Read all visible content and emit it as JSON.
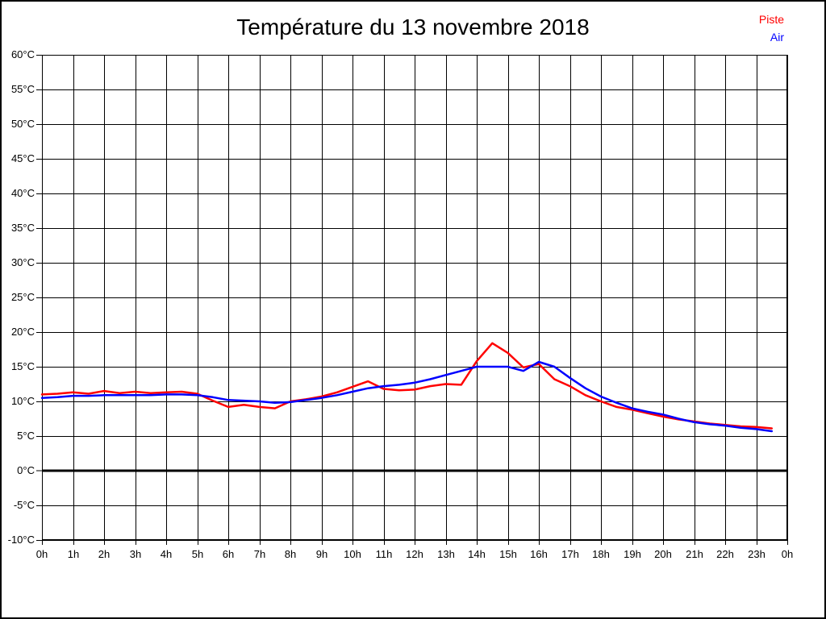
{
  "title": "Température du 13 novembre 2018",
  "legend": {
    "position": "top-right",
    "items": [
      {
        "label": "Piste",
        "color": "#ff0000"
      },
      {
        "label": "Air",
        "color": "#0000ff"
      }
    ]
  },
  "colors": {
    "background": "#ffffff",
    "grid": "#000000",
    "axis_text": "#000000",
    "frame": "#000000",
    "zero_line": "#000000"
  },
  "chart_data": {
    "type": "line",
    "title": "Température du 13 novembre 2018",
    "xlabel": "",
    "ylabel": "",
    "xlim": [
      0,
      24
    ],
    "ylim": [
      -10,
      60
    ],
    "y_step": 5,
    "grid": true,
    "zero_line_bold": true,
    "x_tick_labels": [
      "0h",
      "1h",
      "2h",
      "3h",
      "4h",
      "5h",
      "6h",
      "7h",
      "8h",
      "9h",
      "10h",
      "11h",
      "12h",
      "13h",
      "14h",
      "15h",
      "16h",
      "17h",
      "18h",
      "19h",
      "20h",
      "21h",
      "22h",
      "23h",
      "0h"
    ],
    "x_tick_values": [
      0,
      1,
      2,
      3,
      4,
      5,
      6,
      7,
      8,
      9,
      10,
      11,
      12,
      13,
      14,
      15,
      16,
      17,
      18,
      19,
      20,
      21,
      22,
      23,
      24
    ],
    "y_tick_labels": [
      "60°C",
      "55°C",
      "50°C",
      "45°C",
      "40°C",
      "35°C",
      "30°C",
      "25°C",
      "20°C",
      "15°C",
      "10°C",
      "5°C",
      "0°C",
      "-5°C",
      "-10°C"
    ],
    "y_tick_values": [
      60,
      55,
      50,
      45,
      40,
      35,
      30,
      25,
      20,
      15,
      10,
      5,
      0,
      -5,
      -10
    ],
    "x": [
      0,
      0.5,
      1,
      1.5,
      2,
      2.5,
      3,
      3.5,
      4,
      4.5,
      5,
      5.5,
      6,
      6.5,
      7,
      7.5,
      8,
      8.5,
      9,
      9.5,
      10,
      10.5,
      11,
      11.5,
      12,
      12.5,
      13,
      13.5,
      14,
      14.5,
      15,
      15.5,
      16,
      16.5,
      17,
      17.5,
      18,
      18.5,
      19,
      19.5,
      20,
      20.5,
      21,
      21.5,
      22,
      22.5,
      23,
      23.5
    ],
    "series": [
      {
        "name": "Piste",
        "color": "#ff0000",
        "values": [
          11.0,
          11.1,
          11.3,
          11.1,
          11.5,
          11.2,
          11.4,
          11.2,
          11.3,
          11.4,
          11.1,
          10.1,
          9.2,
          9.5,
          9.2,
          9.0,
          10.0,
          10.3,
          10.7,
          11.3,
          12.1,
          12.9,
          11.8,
          11.6,
          11.7,
          12.2,
          12.5,
          12.4,
          15.8,
          18.4,
          17.0,
          14.9,
          15.4,
          13.2,
          12.2,
          10.9,
          10.0,
          9.2,
          8.8,
          8.3,
          7.8,
          7.4,
          7.1,
          6.8,
          6.6,
          6.4,
          6.3,
          6.1
        ]
      },
      {
        "name": "Air",
        "color": "#0000ff",
        "values": [
          10.5,
          10.6,
          10.8,
          10.8,
          10.9,
          10.9,
          10.9,
          10.9,
          11.0,
          11.0,
          10.9,
          10.6,
          10.2,
          10.1,
          10.0,
          9.8,
          9.9,
          10.2,
          10.5,
          10.9,
          11.4,
          11.9,
          12.2,
          12.4,
          12.7,
          13.2,
          13.8,
          14.4,
          15.0,
          15.0,
          15.0,
          14.4,
          15.7,
          15.0,
          13.4,
          11.9,
          10.7,
          9.8,
          9.0,
          8.5,
          8.1,
          7.5,
          7.0,
          6.7,
          6.5,
          6.2,
          6.0,
          5.7
        ]
      }
    ]
  }
}
